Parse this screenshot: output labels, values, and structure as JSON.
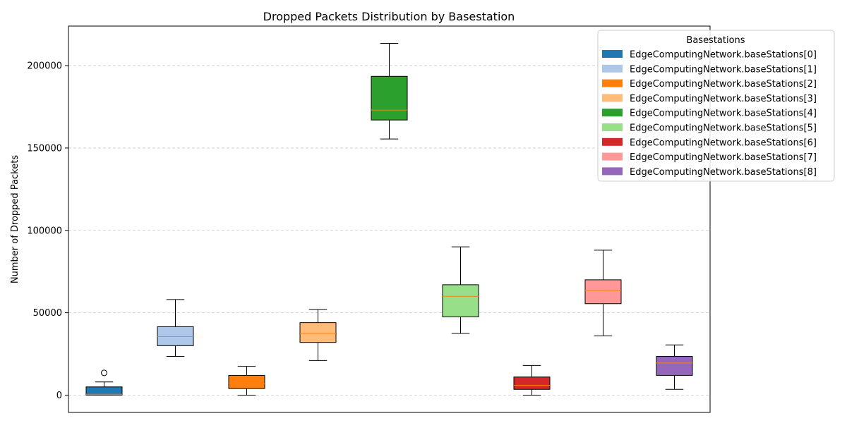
{
  "chart_data": {
    "type": "box",
    "title": "Dropped Packets Distribution by Basestation",
    "xlabel": "",
    "ylabel": "Number of Dropped Packets",
    "ylim": [
      -10500,
      224000
    ],
    "yticks": [
      0,
      50000,
      100000,
      150000,
      200000
    ],
    "grid": "y-dashed",
    "legend_title": "Basestations",
    "legend_position": "top-right",
    "series": [
      {
        "name": "EdgeComputingNetwork.baseStations[0]",
        "color": "#1f77b4",
        "whisker_low": 0,
        "q1": 0,
        "median": 500,
        "q3": 5000,
        "whisker_high": 8000,
        "outliers": [
          13500
        ]
      },
      {
        "name": "EdgeComputingNetwork.baseStations[1]",
        "color": "#aec7e8",
        "whisker_low": 23500,
        "q1": 30000,
        "median": 35500,
        "q3": 41500,
        "whisker_high": 58000,
        "outliers": []
      },
      {
        "name": "EdgeComputingNetwork.baseStations[2]",
        "color": "#ff7f0e",
        "whisker_low": 0,
        "q1": 4000,
        "median": 7000,
        "q3": 12000,
        "whisker_high": 17500,
        "outliers": []
      },
      {
        "name": "EdgeComputingNetwork.baseStations[3]",
        "color": "#ffbb78",
        "whisker_low": 21000,
        "q1": 32000,
        "median": 37500,
        "q3": 44000,
        "whisker_high": 52000,
        "outliers": []
      },
      {
        "name": "EdgeComputingNetwork.baseStations[4]",
        "color": "#2ca02c",
        "whisker_low": 155500,
        "q1": 167000,
        "median": 173000,
        "q3": 193500,
        "whisker_high": 213500,
        "outliers": []
      },
      {
        "name": "EdgeComputingNetwork.baseStations[5]",
        "color": "#98df8a",
        "whisker_low": 37500,
        "q1": 47500,
        "median": 60000,
        "q3": 67000,
        "whisker_high": 90000,
        "outliers": []
      },
      {
        "name": "EdgeComputingNetwork.baseStations[6]",
        "color": "#d62728",
        "whisker_low": 0,
        "q1": 3500,
        "median": 6000,
        "q3": 11000,
        "whisker_high": 18000,
        "outliers": []
      },
      {
        "name": "EdgeComputingNetwork.baseStations[7]",
        "color": "#ff9896",
        "whisker_low": 36000,
        "q1": 55500,
        "median": 63500,
        "q3": 70000,
        "whisker_high": 88000,
        "outliers": []
      },
      {
        "name": "EdgeComputingNetwork.baseStations[8]",
        "color": "#9467bd",
        "whisker_low": 3500,
        "q1": 12000,
        "median": 19500,
        "q3": 23500,
        "whisker_high": 30500,
        "outliers": []
      }
    ],
    "median_color": "#ff7f0e",
    "grid_color": "#c8c8c8"
  }
}
